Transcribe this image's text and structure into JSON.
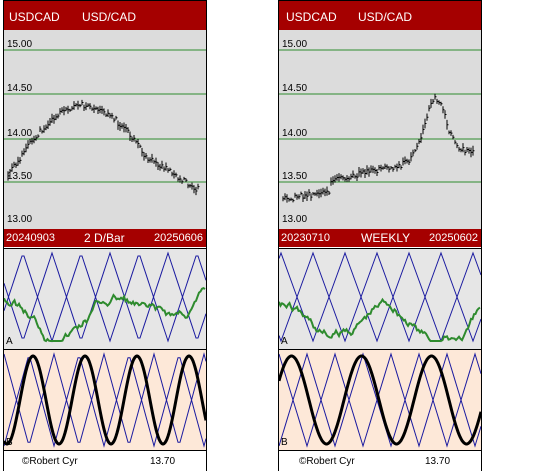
{
  "panels": [
    {
      "header_left": "USDCAD",
      "header_right": "USD/CAD",
      "y_labels": [
        "15.00",
        "14.50",
        "14.00",
        "13.50",
        "13.00"
      ],
      "date_start": "20240903",
      "period": "2 D/Bar",
      "date_end": "20250606",
      "osc_a_label": "A",
      "osc_b_label": "B",
      "credit": "©Robert Cyr",
      "value": "13.70"
    },
    {
      "header_left": "USDCAD",
      "header_right": "USD/CAD",
      "y_labels": [
        "15.00",
        "14.50",
        "14.00",
        "13.50",
        "13.00"
      ],
      "date_start": "20230710",
      "period": "WEEKLY",
      "date_end": "20250602",
      "osc_a_label": "A",
      "osc_b_label": "B",
      "credit": "©Robert Cyr",
      "value": "13.70"
    }
  ],
  "colors": {
    "header_bg": "#a50000",
    "price_bg": "#dcdcdc",
    "osc_a_bg": "#e6e6e6",
    "osc_b_bg": "#fde8d8",
    "grid": "#2e8b2e",
    "osc_line": "#2e8b2e",
    "zigzag": "#1a1aa0"
  }
}
